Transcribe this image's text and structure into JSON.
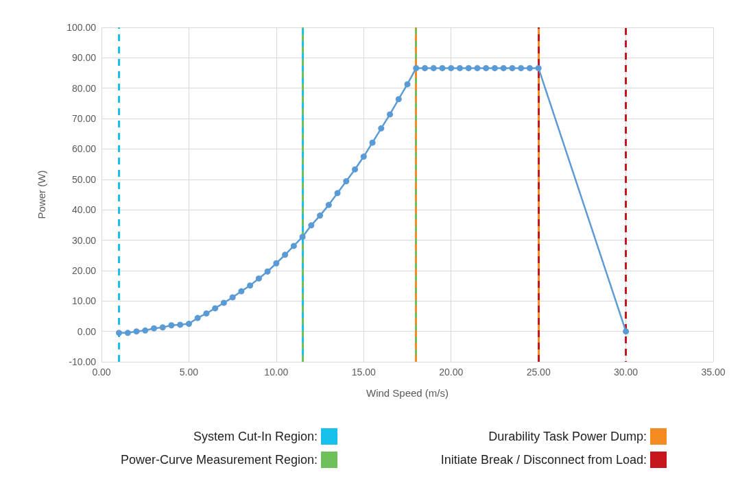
{
  "chart_data": {
    "type": "line",
    "xlabel": "Wind Speed (m/s)",
    "ylabel": "Power (W)",
    "x": [
      1,
      1.5,
      2,
      2.5,
      3,
      3.5,
      4,
      4.5,
      5,
      5.5,
      6,
      6.5,
      7,
      7.5,
      8,
      8.5,
      9,
      9.5,
      10,
      10.5,
      11,
      11.5,
      12,
      12.5,
      13,
      13.5,
      14,
      14.5,
      15,
      15.5,
      16,
      16.5,
      17,
      17.5,
      18,
      18.5,
      19,
      19.5,
      20,
      20.5,
      21,
      21.5,
      22,
      22.5,
      23,
      23.5,
      24,
      24.5,
      25,
      30
    ],
    "series": [
      {
        "color": "#5b9bd5",
        "values": [
          -0.5,
          -0.5,
          0,
          0.3,
          1,
          1.3,
          2,
          2.2,
          2.5,
          4.4,
          5.9,
          7.6,
          9.4,
          11.2,
          13.2,
          15.1,
          17.4,
          19.7,
          22.4,
          25.2,
          28.1,
          31.1,
          34.9,
          38.1,
          41.6,
          45.5,
          49.4,
          53.3,
          57.5,
          62.1,
          66.8,
          71.4,
          76.4,
          81.3,
          86.6,
          86.6,
          86.6,
          86.6,
          86.6,
          86.6,
          86.6,
          86.6,
          86.6,
          86.6,
          86.6,
          86.6,
          86.6,
          86.6,
          86.6,
          0
        ]
      }
    ],
    "ref_lines": [
      {
        "axis": "x",
        "value": 1,
        "label": "System Cut-In Region:",
        "color": "#17c1ec",
        "line_style": "dashed"
      },
      {
        "axis": "x",
        "value": 11.5,
        "color": "#17c1ec",
        "line_style": "dashed"
      },
      {
        "axis": "x",
        "value": 11.5,
        "label": "Power-Curve Measurement Region:",
        "color": "#6fc05a",
        "line_style": "dashed"
      },
      {
        "axis": "x",
        "value": 18,
        "color": "#6fc05a",
        "line_style": "dashed"
      },
      {
        "axis": "x",
        "value": 18,
        "label": "Durability Task Power Dump:",
        "color": "#f58c22",
        "line_style": "dashed"
      },
      {
        "axis": "x",
        "value": 25,
        "color": "#f58c22",
        "line_style": "dashed"
      },
      {
        "axis": "x",
        "value": 25,
        "color": "#c5161d",
        "line_style": "dashed"
      },
      {
        "axis": "x",
        "value": 30,
        "label": "Initiate Break / Disconnect from Load:",
        "color": "#c5161d",
        "line_style": "dashed"
      }
    ],
    "xlim": [
      0,
      35
    ],
    "xticks": [
      {
        "value": 0,
        "label": "0.00"
      },
      {
        "value": 5,
        "label": "5.00"
      },
      {
        "value": 10,
        "label": "10.00"
      },
      {
        "value": 15,
        "label": "15.00"
      },
      {
        "value": 20,
        "label": "20.00"
      },
      {
        "value": 25,
        "label": "25.00"
      },
      {
        "value": 30,
        "label": "30.00"
      },
      {
        "value": 35,
        "label": "35.00"
      }
    ],
    "ylim": [
      -10,
      100
    ],
    "yticks": [
      {
        "value": -10,
        "label": "-10.00"
      },
      {
        "value": 0,
        "label": "0.00"
      },
      {
        "value": 10,
        "label": "10.00"
      },
      {
        "value": 20,
        "label": "20.00"
      },
      {
        "value": 30,
        "label": "30.00"
      },
      {
        "value": 40,
        "label": "40.00"
      },
      {
        "value": 50,
        "label": "50.00"
      },
      {
        "value": 60,
        "label": "60.00"
      },
      {
        "value": 70,
        "label": "70.00"
      },
      {
        "value": 80,
        "label": "80.00"
      },
      {
        "value": 90,
        "label": "90.00"
      },
      {
        "value": 100,
        "label": "100.00"
      }
    ],
    "grid": true,
    "legend": "bottom",
    "marker": "circle",
    "line_style": "solid"
  }
}
